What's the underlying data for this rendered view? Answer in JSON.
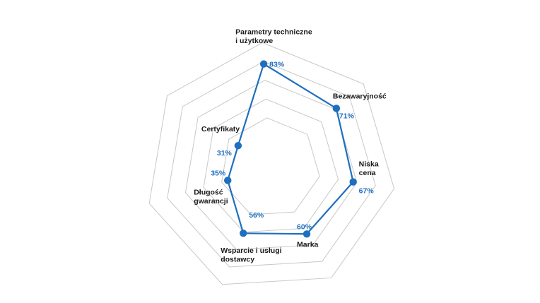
{
  "chart_data": {
    "type": "radar",
    "categories": [
      "Parametry techniczne i użytkowe",
      "Bezawaryjność",
      "Niska cena",
      "Marka",
      "Wsparcie i usługi dostawcy",
      "Długość gwarancji",
      "Certyfikaty"
    ],
    "category_label_lines": [
      [
        "Parametry techniczne",
        "i użytkowe"
      ],
      [
        "Bezawaryjność"
      ],
      [
        "Niska",
        "cena"
      ],
      [
        "Marka"
      ],
      [
        "Wsparcie i usługi",
        "dostawcy"
      ],
      [
        "Długość",
        "gwarancji"
      ],
      [
        "Certyfikaty"
      ]
    ],
    "values": [
      83,
      71,
      67,
      60,
      56,
      35,
      31
    ],
    "value_labels": [
      "83%",
      "71%",
      "67%",
      "60%",
      "56%",
      "35%",
      "31%"
    ],
    "rlim": [
      0,
      100
    ],
    "rings": 5,
    "grid": true,
    "colors": {
      "series": "#1f6fbf",
      "grid": "#c8c8c8",
      "label": "#1a1a1a"
    }
  }
}
